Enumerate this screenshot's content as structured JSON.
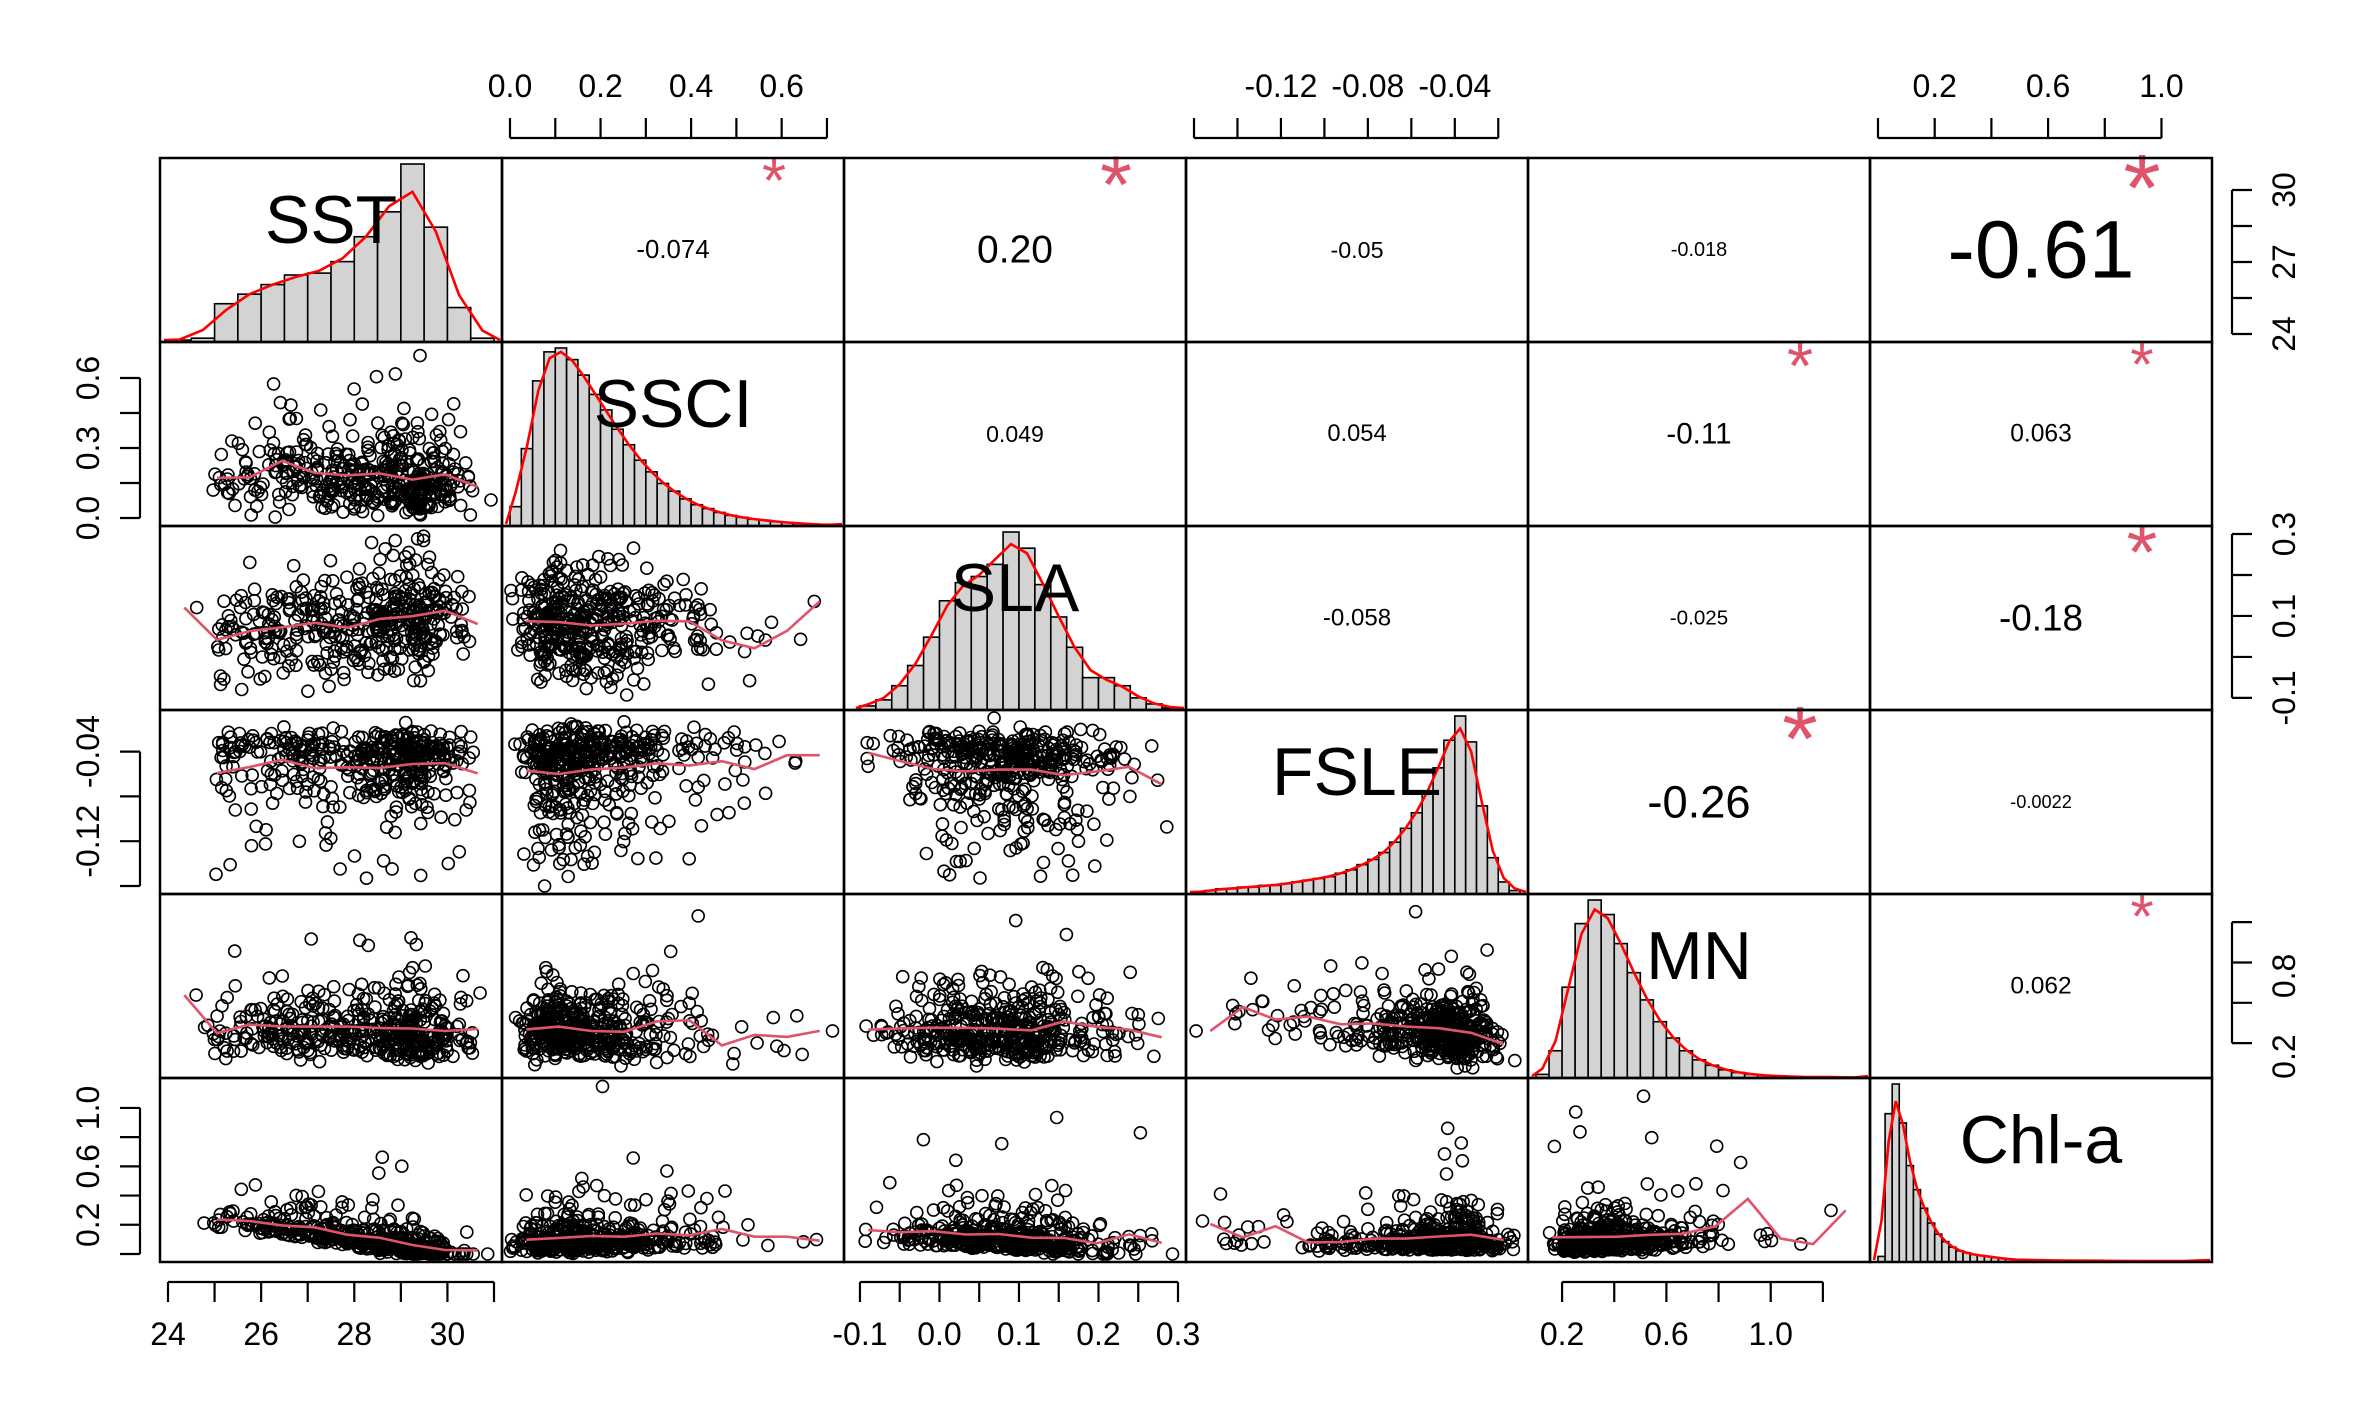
{
  "chart_data": {
    "type": "scatter",
    "variables": [
      "SST",
      "SSCI",
      "SLA",
      "FSLE",
      "MN",
      "Chl-a"
    ],
    "ranges": [
      [
        24,
        31
      ],
      [
        0,
        0.72
      ],
      [
        -0.11,
        0.3
      ],
      [
        -0.16,
        -0.01
      ],
      [
        0.1,
        1.35
      ],
      [
        0,
        1.15
      ]
    ],
    "ticks": [
      {
        "values": [
          24,
          26,
          28,
          30
        ],
        "labels": [
          "24",
          "26",
          "28",
          "30"
        ],
        "side": "bottom",
        "rotated": false
      },
      {
        "values": [
          0,
          0.2,
          0.4,
          0.6
        ],
        "labels": [
          "0.0",
          "0.2",
          "0.4",
          "0.6"
        ],
        "side": "top",
        "rotated": false
      },
      {
        "values": [
          -0.1,
          0,
          0.1,
          0.2,
          0.3
        ],
        "labels": [
          "-0.1",
          "0.0",
          "0.1",
          "0.2",
          "0.3"
        ],
        "side": "bottom",
        "rotated": false
      },
      {
        "values": [
          -0.12,
          -0.08,
          -0.04
        ],
        "labels": [
          "-0.12",
          "-0.08",
          "-0.04"
        ],
        "side": "top",
        "rotated": false
      },
      {
        "values": [
          0.2,
          0.6,
          1.0
        ],
        "labels": [
          "0.2",
          "0.6",
          "1.0"
        ],
        "side": "bottom",
        "rotated": false
      },
      {
        "values": [
          0.2,
          0.6,
          1.0
        ],
        "labels": [
          "0.2",
          "0.6",
          "1.0"
        ],
        "side": "top",
        "rotated": false
      }
    ],
    "left_ticks": [
      {
        "row": 1,
        "values": [
          0,
          0.3,
          0.6
        ],
        "labels": [
          "0.0",
          "0.3",
          "0.6"
        ]
      },
      {
        "row": 3,
        "values": [
          -0.12,
          -0.04
        ],
        "labels": [
          "-0.12",
          "-0.04"
        ]
      },
      {
        "row": 5,
        "values": [
          0.2,
          0.6,
          1.0
        ],
        "labels": [
          "0.2",
          "0.6",
          "1.0"
        ]
      }
    ],
    "right_ticks": [
      {
        "row": 0,
        "values": [
          24,
          27,
          30
        ],
        "labels": [
          "24",
          "27",
          "30"
        ]
      },
      {
        "row": 2,
        "values": [
          -0.1,
          0.1,
          0.3
        ],
        "labels": [
          "-0.1",
          "0.1",
          "0.3"
        ]
      },
      {
        "row": 4,
        "values": [
          0.2,
          0.8
        ],
        "labels": [
          "0.2",
          "0.8"
        ]
      }
    ],
    "correlations": [
      {
        "row": 0,
        "col": 1,
        "label": "-0.074",
        "value": -0.074,
        "significant": true
      },
      {
        "row": 0,
        "col": 2,
        "label": "0.20",
        "value": 0.2,
        "significant": true
      },
      {
        "row": 0,
        "col": 3,
        "label": "-0.05",
        "value": -0.05,
        "significant": false
      },
      {
        "row": 0,
        "col": 4,
        "label": "-0.018",
        "value": -0.018,
        "significant": false
      },
      {
        "row": 0,
        "col": 5,
        "label": "-0.61",
        "value": -0.61,
        "significant": true
      },
      {
        "row": 1,
        "col": 2,
        "label": "0.049",
        "value": 0.049,
        "significant": false
      },
      {
        "row": 1,
        "col": 3,
        "label": "0.054",
        "value": 0.054,
        "significant": false
      },
      {
        "row": 1,
        "col": 4,
        "label": "-0.11",
        "value": -0.11,
        "significant": true
      },
      {
        "row": 1,
        "col": 5,
        "label": "0.063",
        "value": 0.063,
        "significant": true
      },
      {
        "row": 2,
        "col": 3,
        "label": "-0.058",
        "value": -0.058,
        "significant": false
      },
      {
        "row": 2,
        "col": 4,
        "label": "-0.025",
        "value": -0.025,
        "significant": false
      },
      {
        "row": 2,
        "col": 5,
        "label": "-0.18",
        "value": -0.18,
        "significant": true
      },
      {
        "row": 3,
        "col": 4,
        "label": "-0.26",
        "value": -0.26,
        "significant": true
      },
      {
        "row": 3,
        "col": 5,
        "label": "-0.0022",
        "value": -0.0022,
        "significant": false
      },
      {
        "row": 4,
        "col": 5,
        "label": "0.062",
        "value": 0.062,
        "significant": true
      }
    ],
    "significance_marker": "*",
    "histograms": [
      {
        "var": "SST",
        "bins": [
          24,
          24.5,
          25,
          25.5,
          26,
          26.5,
          27,
          27.5,
          28,
          28.5,
          29,
          29.5,
          30,
          30.5,
          31
        ],
        "counts": [
          0.1,
          0.2,
          2.0,
          2.5,
          3.0,
          3.5,
          3.6,
          4.2,
          5.5,
          6.8,
          9.3,
          6.0,
          1.8,
          0.2
        ]
      },
      {
        "var": "SSCI",
        "bins": [
          0,
          0.025,
          0.05,
          0.075,
          0.1,
          0.125,
          0.15,
          0.175,
          0.2,
          0.225,
          0.25,
          0.275,
          0.3,
          0.325,
          0.35,
          0.375,
          0.4,
          0.425,
          0.45,
          0.475,
          0.5,
          0.525,
          0.55,
          0.575,
          0.6,
          0.625,
          0.65,
          0.675,
          0.7,
          0.725
        ],
        "counts": [
          1.0,
          4.0,
          7.5,
          9.0,
          9.2,
          8.6,
          7.8,
          6.8,
          6.0,
          5.0,
          4.2,
          3.4,
          2.8,
          2.2,
          1.8,
          1.4,
          1.1,
          0.9,
          0.7,
          0.55,
          0.45,
          0.35,
          0.3,
          0.22,
          0.18,
          0.14,
          0.1,
          0.08,
          0.06
        ]
      },
      {
        "var": "SLA",
        "bins": [
          -0.1,
          -0.08,
          -0.06,
          -0.04,
          -0.02,
          0,
          0.02,
          0.04,
          0.06,
          0.08,
          0.1,
          0.12,
          0.14,
          0.16,
          0.18,
          0.2,
          0.22,
          0.24,
          0.26,
          0.28,
          0.3
        ],
        "counts": [
          0.2,
          0.5,
          1.2,
          2.2,
          3.6,
          5.4,
          6.3,
          6.6,
          7.2,
          8.8,
          8.0,
          6.2,
          4.6,
          3.1,
          1.6,
          1.6,
          1.2,
          0.6,
          0.3,
          0.1
        ]
      },
      {
        "var": "FSLE",
        "bins": [
          -0.16,
          -0.155,
          -0.15,
          -0.145,
          -0.14,
          -0.135,
          -0.13,
          -0.125,
          -0.12,
          -0.115,
          -0.11,
          -0.105,
          -0.1,
          -0.095,
          -0.09,
          -0.085,
          -0.08,
          -0.075,
          -0.07,
          -0.065,
          -0.06,
          -0.055,
          -0.05,
          -0.045,
          -0.04,
          -0.035,
          -0.03,
          -0.025,
          -0.02,
          -0.015,
          -0.01
        ],
        "counts": [
          0.1,
          0.2,
          0.3,
          0.3,
          0.4,
          0.4,
          0.5,
          0.5,
          0.6,
          0.7,
          0.8,
          0.9,
          1.0,
          1.2,
          1.4,
          1.7,
          2.0,
          2.4,
          3.0,
          3.8,
          4.7,
          5.9,
          7.3,
          8.9,
          10.3,
          8.8,
          5.1,
          2.1,
          0.7,
          0.2
        ]
      },
      {
        "var": "MN",
        "bins": [
          0.1,
          0.15,
          0.2,
          0.25,
          0.3,
          0.35,
          0.4,
          0.45,
          0.5,
          0.55,
          0.6,
          0.65,
          0.7,
          0.75,
          0.8,
          0.85,
          0.9,
          0.95,
          1.0,
          1.05,
          1.1,
          1.15,
          1.2,
          1.25,
          1.3,
          1.35
        ],
        "counts": [
          0.2,
          1.5,
          5.0,
          8.5,
          9.8,
          9.0,
          7.4,
          5.8,
          4.3,
          3.1,
          2.2,
          1.5,
          1.0,
          0.7,
          0.45,
          0.3,
          0.2,
          0.15,
          0.1,
          0.08,
          0.06,
          0.05,
          0.05,
          0.04,
          0.03
        ]
      },
      {
        "var": "Chl-a",
        "bins": [
          0,
          0.025,
          0.05,
          0.075,
          0.1,
          0.125,
          0.15,
          0.175,
          0.2,
          0.225,
          0.25,
          0.275,
          0.3,
          0.325,
          0.35,
          0.375,
          0.4,
          0.425,
          0.45,
          0.475,
          0.5,
          0.6,
          0.7,
          0.8,
          0.9,
          1.0,
          1.15
        ],
        "counts": [
          0.3,
          8.0,
          9.6,
          7.5,
          5.2,
          3.9,
          2.9,
          2.1,
          1.5,
          1.1,
          0.8,
          0.6,
          0.5,
          0.4,
          0.35,
          0.3,
          0.25,
          0.2,
          0.15,
          0.12,
          0.1,
          0.08,
          0.07,
          0.06,
          0.05,
          0.05
        ]
      }
    ],
    "colors": {
      "frame": "#000000",
      "bar_fill": "#d3d3d3",
      "smooth_line": "#df536b",
      "density_line": "#ff0000",
      "star": "#df536b"
    }
  }
}
